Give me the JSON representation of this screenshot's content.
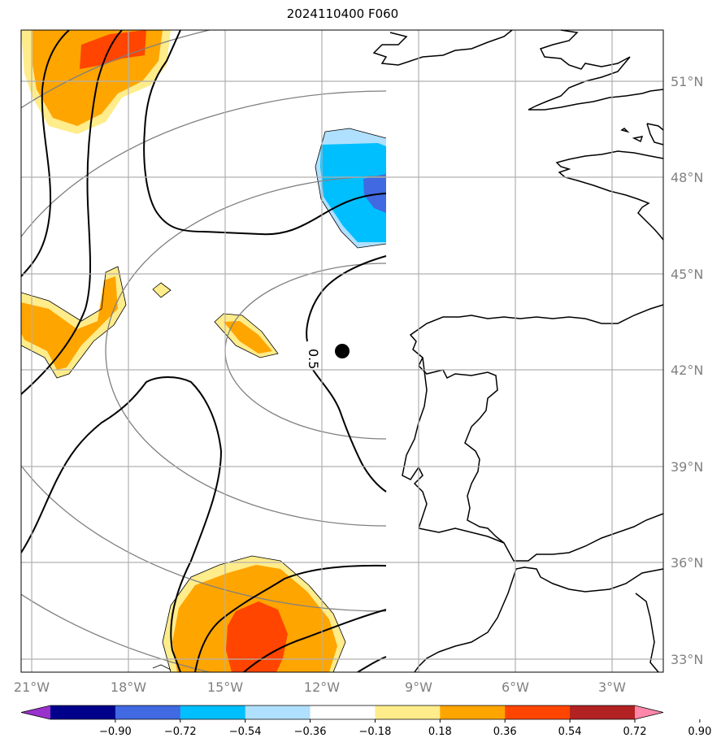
{
  "title": "2024110400 F060",
  "lon_labels": [
    "21°W",
    "18°W",
    "15°W",
    "12°W",
    "9°W",
    "6°W",
    "3°W"
  ],
  "lat_labels": [
    "51°N",
    "48°N",
    "45°N",
    "42°N",
    "39°N",
    "36°N",
    "33°N"
  ],
  "contour_label": "0.5",
  "colorbar": {
    "ticks": [
      "−0.90",
      "−0.72",
      "−0.54",
      "−0.36",
      "−0.18",
      "0.18",
      "0.36",
      "0.54",
      "0.72",
      "0.90"
    ],
    "colors": [
      "#9932cc",
      "#00008b",
      "#4169e1",
      "#00bfff",
      "#b0e0ff",
      "#ffffff",
      "#ffec8b",
      "#ffa500",
      "#ff4500",
      "#b22222",
      "#ff88aa"
    ]
  },
  "colors": {
    "grid": "#b0b0b0",
    "contour": "#000000",
    "circle": "#808080",
    "tick_label": "#808080"
  }
}
